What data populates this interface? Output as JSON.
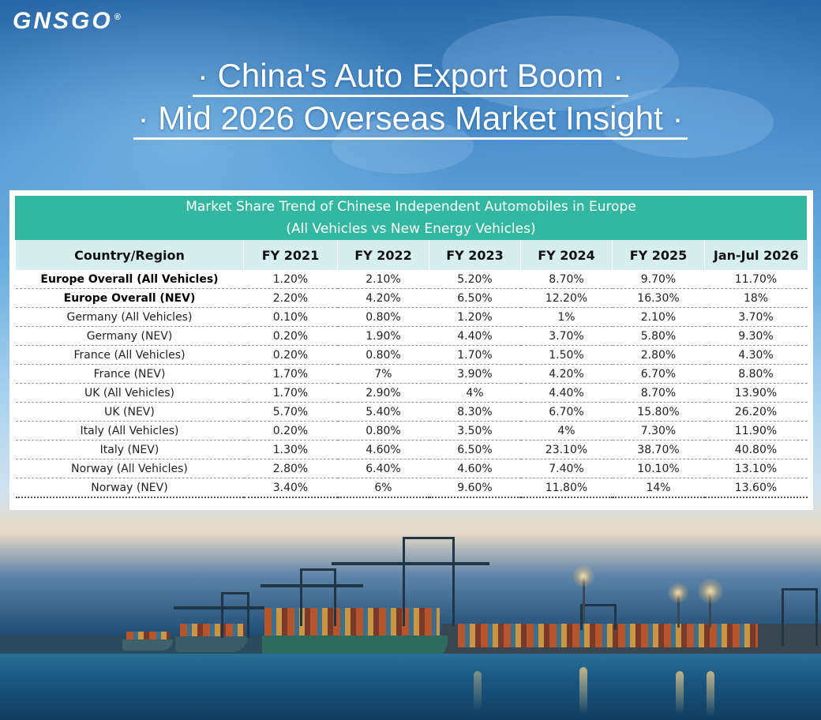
{
  "brand": {
    "logo_text": "GNSGO",
    "logo_mark": "®"
  },
  "header": {
    "title_line1": "· China's Auto Export Boom ·",
    "title_line2": "· Mid 2026 Overseas Market Insight ·"
  },
  "chart_data": {
    "type": "table",
    "title": "Market Share Trend of Chinese Independent Automobiles in Europe",
    "subtitle": "(All Vehicles vs New Energy Vehicles)",
    "columns": [
      "Country/Region",
      "FY 2021",
      "FY 2022",
      "FY 2023",
      "FY 2024",
      "FY 2025",
      "Jan-Jul 2026"
    ],
    "rows": [
      {
        "label": "Europe Overall (All Vehicles)",
        "bold": true,
        "values": [
          "1.20%",
          "2.10%",
          "5.20%",
          "8.70%",
          "9.70%",
          "11.70%"
        ]
      },
      {
        "label": "Europe Overall (NEV)",
        "bold": true,
        "values": [
          "2.20%",
          "4.20%",
          "6.50%",
          "12.20%",
          "16.30%",
          "18%"
        ]
      },
      {
        "label": "Germany (All Vehicles)",
        "bold": false,
        "values": [
          "0.10%",
          "0.80%",
          "1.20%",
          "1%",
          "2.10%",
          "3.70%"
        ]
      },
      {
        "label": "Germany (NEV)",
        "bold": false,
        "values": [
          "0.20%",
          "1.90%",
          "4.40%",
          "3.70%",
          "5.80%",
          "9.30%"
        ]
      },
      {
        "label": "France (All Vehicles)",
        "bold": false,
        "values": [
          "0.20%",
          "0.80%",
          "1.70%",
          "1.50%",
          "2.80%",
          "4.30%"
        ]
      },
      {
        "label": "France (NEV)",
        "bold": false,
        "values": [
          "1.70%",
          "7%",
          "3.90%",
          "4.20%",
          "6.70%",
          "8.80%"
        ]
      },
      {
        "label": "UK (All Vehicles)",
        "bold": false,
        "values": [
          "1.70%",
          "2.90%",
          "4%",
          "4.40%",
          "8.70%",
          "13.90%"
        ]
      },
      {
        "label": "UK (NEV)",
        "bold": false,
        "values": [
          "5.70%",
          "5.40%",
          "8.30%",
          "6.70%",
          "15.80%",
          "26.20%"
        ]
      },
      {
        "label": "Italy (All Vehicles)",
        "bold": false,
        "values": [
          "0.20%",
          "0.80%",
          "3.50%",
          "4%",
          "7.30%",
          "11.90%"
        ]
      },
      {
        "label": "Italy (NEV)",
        "bold": false,
        "values": [
          "1.30%",
          "4.60%",
          "6.50%",
          "23.10%",
          "38.70%",
          "40.80%"
        ]
      },
      {
        "label": "Norway (All Vehicles)",
        "bold": false,
        "values": [
          "2.80%",
          "6.40%",
          "4.60%",
          "7.40%",
          "10.10%",
          "13.10%"
        ]
      },
      {
        "label": "Norway (NEV)",
        "bold": false,
        "values": [
          "3.40%",
          "6%",
          "9.60%",
          "11.80%",
          "14%",
          "13.60%"
        ]
      }
    ]
  },
  "colors": {
    "header_band": "#34b7a2",
    "column_header_bg": "#d6efee"
  }
}
